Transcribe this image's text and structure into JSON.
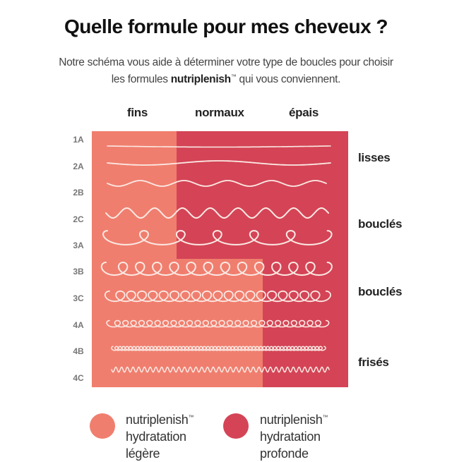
{
  "title": "Quelle formule pour mes cheveux ?",
  "subtitle": {
    "line1": "Notre schéma vous aide à déterminer votre type de boucles pour choisir",
    "line2_prefix": "les formules ",
    "line2_brand": "nutriplenish",
    "line2_tm": "™",
    "line2_suffix": " qui vous conviennent."
  },
  "columns": [
    "fins",
    "normaux",
    "épais"
  ],
  "rows": [
    "1A",
    "2A",
    "2B",
    "2C",
    "3A",
    "3B",
    "3C",
    "4A",
    "4B",
    "4C"
  ],
  "categories": [
    "lisses",
    "bouclés",
    "bouclés",
    "frisés"
  ],
  "colors": {
    "light": "#f07e6e",
    "deep": "#d44456",
    "hair": "#fbe9e4"
  },
  "legend": [
    {
      "brand": "nutriplenish",
      "tm": "™",
      "line2": "hydratation",
      "line3": "légère",
      "color": "#f07e6e"
    },
    {
      "brand": "nutriplenish",
      "tm": "™",
      "line2": "hydratation",
      "line3": "profonde",
      "color": "#d44456"
    }
  ]
}
